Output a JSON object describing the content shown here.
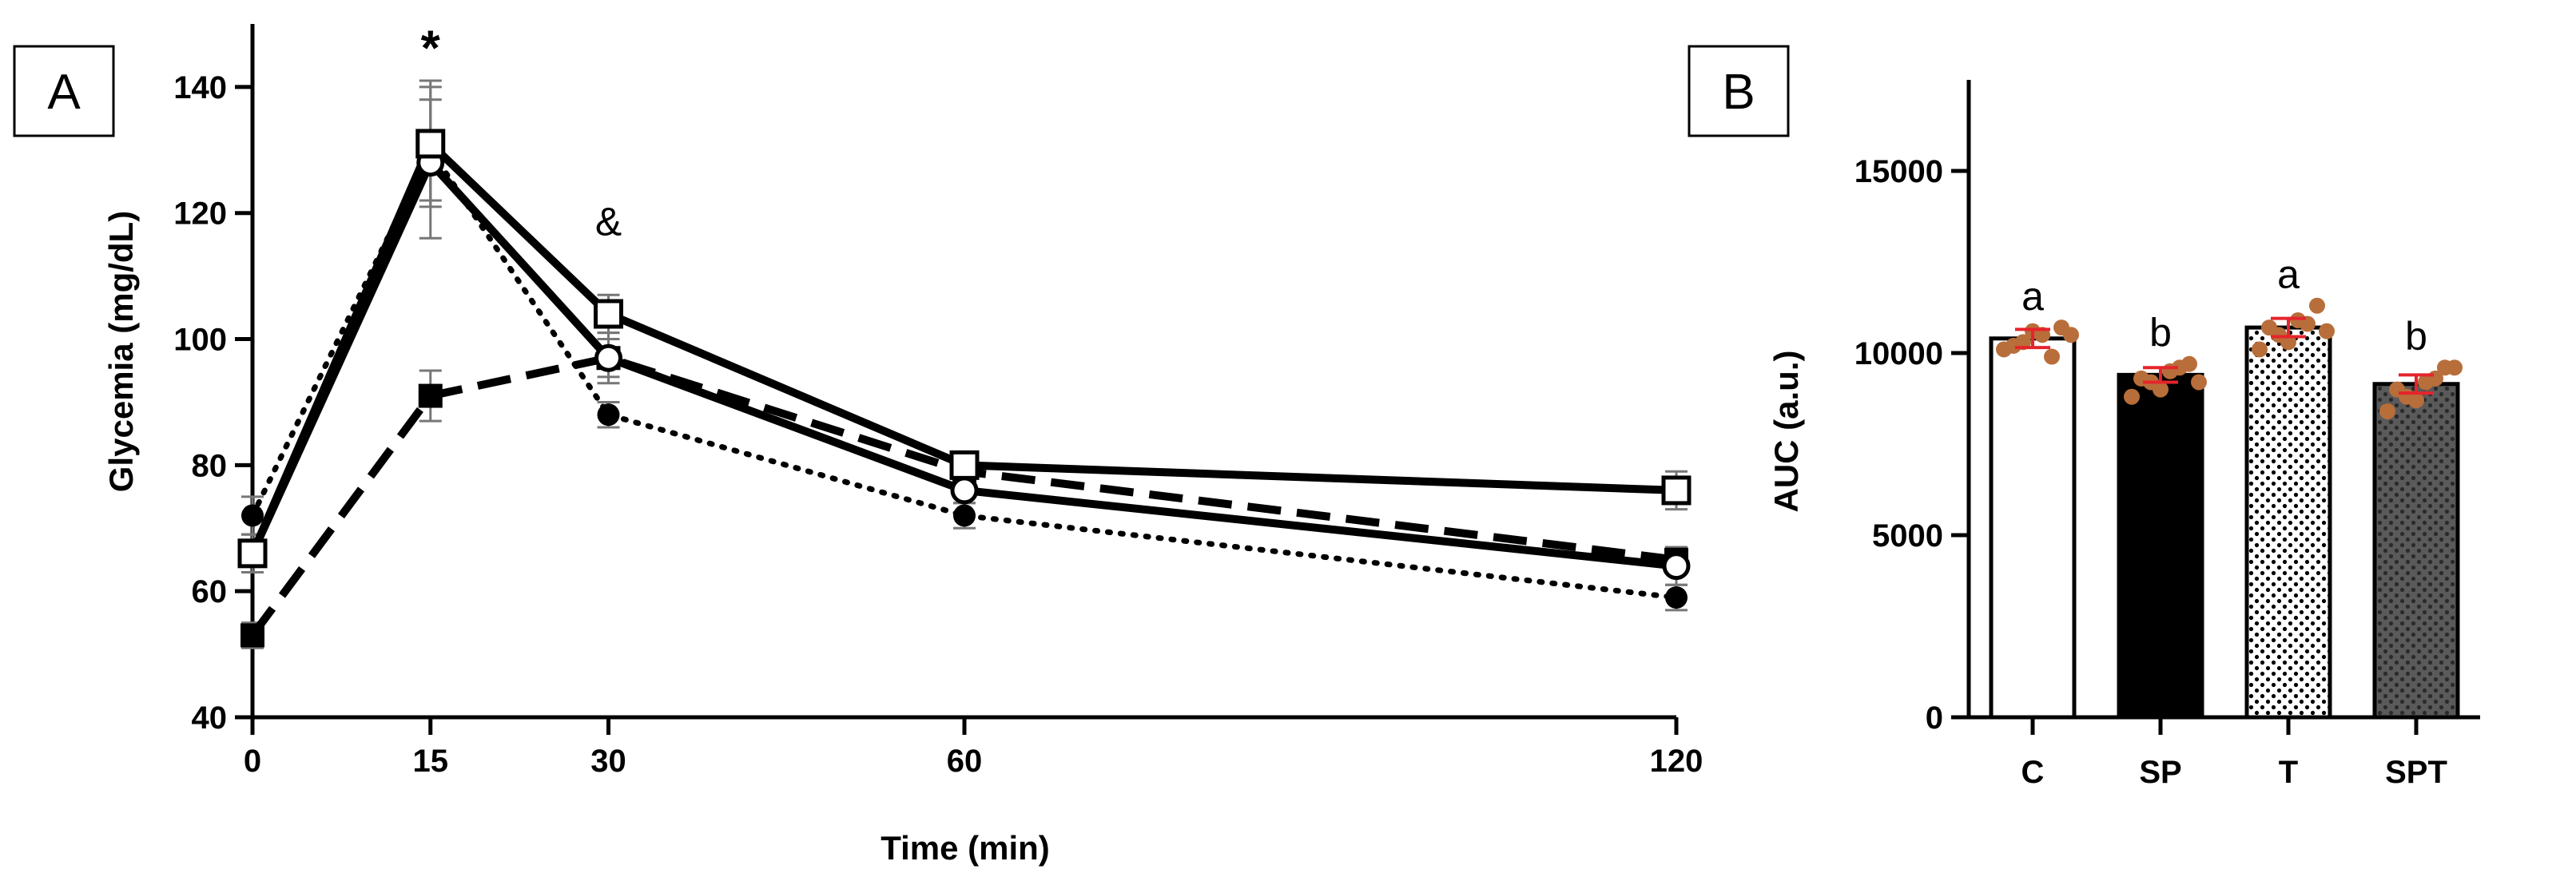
{
  "chart_data": [
    {
      "panel": "A",
      "type": "line",
      "title": "",
      "xlabel": "Time (min)",
      "ylabel": "Glycemia (mg/dL)",
      "ylim": [
        40,
        150
      ],
      "yticks": [
        40,
        60,
        80,
        100,
        120,
        140
      ],
      "xticks": [
        0,
        15,
        30,
        60,
        120
      ],
      "x": [
        0,
        15,
        30,
        60,
        120
      ],
      "series": [
        {
          "name": "C",
          "marker": "open-circle",
          "line": "solid",
          "values": [
            66,
            128,
            97,
            76,
            64
          ],
          "err": [
            3,
            12,
            4,
            2,
            3
          ]
        },
        {
          "name": "SP",
          "marker": "filled-square",
          "line": "dashed",
          "values": [
            53,
            91,
            97,
            79,
            65
          ],
          "err": [
            2,
            4,
            3,
            2,
            2
          ]
        },
        {
          "name": "T",
          "marker": "open-square",
          "line": "solid",
          "values": [
            66,
            131,
            104,
            80,
            76
          ],
          "err": [
            3,
            10,
            3,
            2,
            3
          ]
        },
        {
          "name": "SPT",
          "marker": "filled-circle",
          "line": "dotted",
          "values": [
            72,
            130,
            88,
            72,
            59
          ],
          "err": [
            3,
            8,
            2,
            2,
            2
          ]
        }
      ],
      "annotations": [
        {
          "text": "*",
          "x": 15,
          "y": 146
        },
        {
          "text": "&",
          "x": 30,
          "y": 119
        }
      ]
    },
    {
      "panel": "B",
      "type": "bar",
      "title": "",
      "xlabel": "",
      "ylabel": "AUC (a.u.)",
      "ylim": [
        0,
        17500
      ],
      "yticks": [
        0,
        5000,
        10000,
        15000
      ],
      "categories": [
        "C",
        "SP",
        "T",
        "SPT"
      ],
      "values": [
        10400,
        9400,
        10700,
        9150
      ],
      "sem": [
        250,
        200,
        250,
        250
      ],
      "fills": [
        "white",
        "black",
        "dots",
        "dark-dots"
      ],
      "letters": [
        "a",
        "b",
        "a",
        "b"
      ],
      "points": [
        [
          10100,
          10300,
          10500,
          10700,
          10200,
          10600,
          9900,
          10500
        ],
        [
          8800,
          9200,
          9500,
          9700,
          9300,
          9000,
          9600,
          9200
        ],
        [
          10100,
          10500,
          10900,
          11300,
          10700,
          10300,
          10800,
          10600
        ],
        [
          8400,
          8800,
          9200,
          9600,
          9000,
          8700,
          9300,
          9600
        ]
      ]
    }
  ],
  "colors": {
    "dots": "#b86e3a",
    "sem": "#e5242b",
    "errorbar": "#777777",
    "ink": "#000000"
  }
}
